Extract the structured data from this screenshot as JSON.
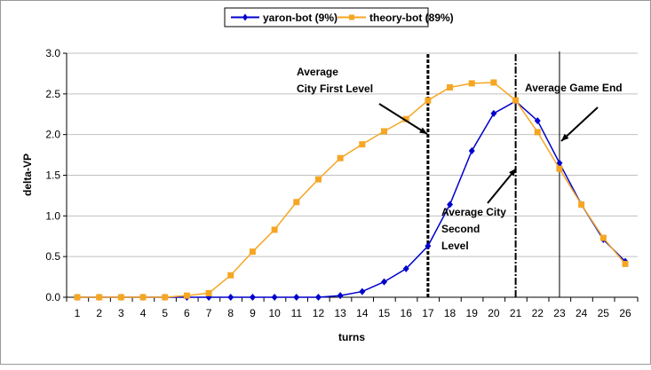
{
  "chart_data": {
    "type": "line",
    "title": "",
    "xlabel": "turns",
    "ylabel": "delta-VP",
    "ylim": [
      0,
      3.0
    ],
    "yticks": [
      "0.0",
      "0.5",
      "1.0",
      "1.5",
      "2.0",
      "2.5",
      "3.0"
    ],
    "x": [
      1,
      2,
      3,
      4,
      5,
      6,
      7,
      8,
      9,
      10,
      11,
      12,
      13,
      14,
      15,
      16,
      17,
      18,
      19,
      20,
      21,
      22,
      23,
      24,
      25,
      26
    ],
    "legend_position": "top",
    "series": [
      {
        "name": "yaron-bot (9%)",
        "color": "#0000CC",
        "marker": "diamond",
        "values": [
          0,
          0,
          0,
          0,
          0,
          0,
          0,
          0,
          0,
          0,
          0,
          0,
          0.02,
          0.07,
          0.19,
          0.35,
          0.63,
          1.14,
          1.8,
          2.26,
          2.41,
          2.17,
          1.65,
          1.14,
          0.71,
          0.44
        ]
      },
      {
        "name": "theory-bot (89%)",
        "color": "#F5A623",
        "marker": "square",
        "values": [
          0,
          0,
          0,
          0,
          0,
          0.02,
          0.05,
          0.27,
          0.56,
          0.83,
          1.17,
          1.45,
          1.71,
          1.88,
          2.04,
          2.19,
          2.42,
          2.58,
          2.63,
          2.64,
          2.42,
          2.03,
          1.58,
          1.14,
          0.73,
          0.41
        ]
      }
    ],
    "reference_lines": [
      {
        "x": 17,
        "style": "dotted",
        "label": "Average City First Level",
        "label_lines": [
          "Average",
          "City First Level"
        ]
      },
      {
        "x": 21,
        "style": "dashdot",
        "label": "Average City Second Level",
        "label_lines": [
          "Average City",
          "Second",
          "Level"
        ]
      },
      {
        "x": 23,
        "style": "solid",
        "label": "Average Game End",
        "label_lines": [
          "Average Game End"
        ]
      }
    ]
  }
}
